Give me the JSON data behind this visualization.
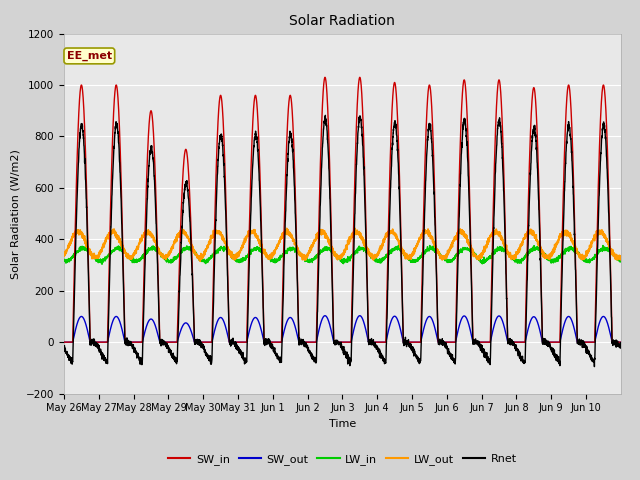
{
  "title": "Solar Radiation",
  "ylabel": "Solar Radiation (W/m2)",
  "xlabel": "Time",
  "ylim": [
    -200,
    1200
  ],
  "yticks": [
    -200,
    0,
    200,
    400,
    600,
    800,
    1000,
    1200
  ],
  "n_days": 16,
  "tick_labels": [
    "May 26",
    "May 27",
    "May 28",
    "May 29",
    "May 30",
    "May 31",
    "Jun 1",
    "Jun 2",
    "Jun 3",
    "Jun 4",
    "Jun 5",
    "Jun 6",
    "Jun 7",
    "Jun 8",
    "Jun 9",
    "Jun 10"
  ],
  "SW_in_color": "#cc0000",
  "SW_out_color": "#0000cc",
  "LW_in_color": "#00cc00",
  "LW_out_color": "#ff9900",
  "Rnet_color": "#000000",
  "legend_label": "EE_met",
  "background_color": "#d3d3d3",
  "plot_bg_color": "#e8e8e8",
  "SW_in_peaks": [
    1000,
    1000,
    900,
    750,
    960,
    960,
    960,
    1030,
    1030,
    1010,
    1000,
    1020,
    1020,
    990,
    1000,
    1000
  ],
  "LW_in_base": 340,
  "LW_in_amp": 25,
  "LW_out_base": 380,
  "LW_out_amp": 50,
  "Rnet_night": -60
}
